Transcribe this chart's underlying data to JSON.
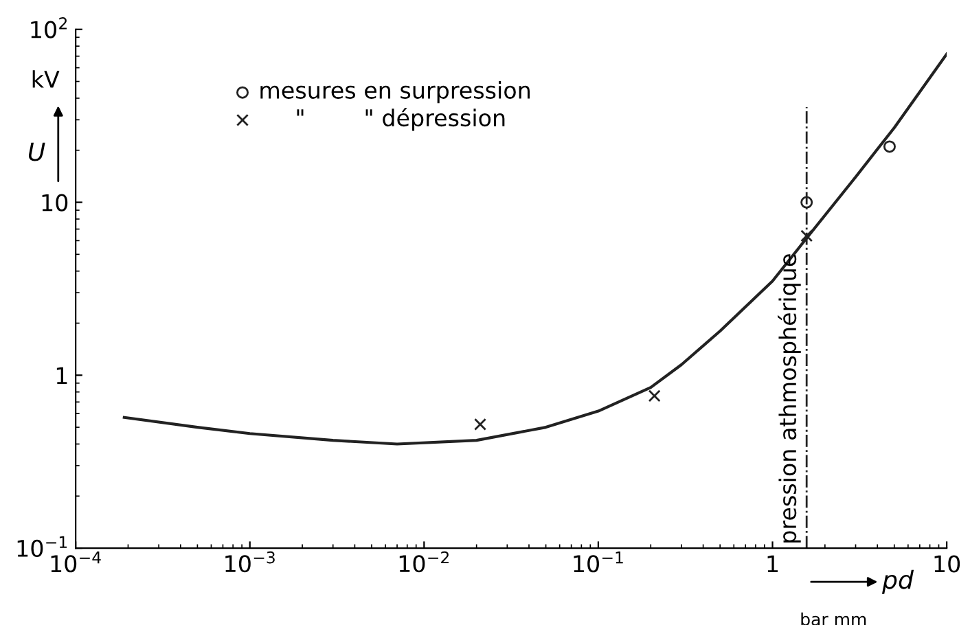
{
  "chart_data": {
    "type": "line",
    "log": "xy",
    "xlabel": "pd",
    "ylabel": "U",
    "annotations": [
      "kV",
      "bar mm"
    ],
    "xlim": [
      0.0001,
      10
    ],
    "xticks": [
      {
        "value": 0.0001,
        "label": "10$^{−4}$"
      },
      {
        "value": 0.001,
        "label": "10$^{−3}$"
      },
      {
        "value": 0.01,
        "label": "10$^{−2}$"
      },
      {
        "value": 0.1,
        "label": "10$^{−1}$"
      },
      1,
      10
    ],
    "ylim": [
      0.1,
      100
    ],
    "yticks": [
      {
        "value": 0.1,
        "label": "10$^{−1}$"
      },
      1,
      10,
      {
        "value": 100,
        "label": "10$^{2}$"
      }
    ],
    "grid": false,
    "legend": "top left",
    "series": [
      {
        "color": "#222222",
        "x": [
          0.00019,
          0.0005,
          0.001,
          0.003,
          0.007,
          0.02,
          0.05,
          0.1,
          0.2,
          0.3,
          0.5,
          1,
          1.57,
          3,
          5,
          10
        ],
        "values": [
          0.57,
          0.5,
          0.46,
          0.42,
          0.4,
          0.42,
          0.5,
          0.62,
          0.85,
          1.15,
          1.8,
          3.5,
          6.2,
          14,
          27,
          72
        ]
      },
      {
        "type": "scatter",
        "name": "mesures en surpression",
        "marker": "circle",
        "color": "#222222",
        "x": [
          1.57,
          4.7
        ],
        "values": [
          10,
          21
        ]
      },
      {
        "type": "scatter",
        "name": "     \"        \" dépression",
        "marker": "cross",
        "color": "#222222",
        "x": [
          0.021,
          0.21,
          1.57
        ],
        "values": [
          0.52,
          0.76,
          6.4
        ]
      }
    ],
    "ref_lines": [
      {
        "axis": "x",
        "value": 1.57,
        "label": "pression athmosphérique",
        "line_style": "dashdot",
        "color": "#222222"
      }
    ]
  }
}
